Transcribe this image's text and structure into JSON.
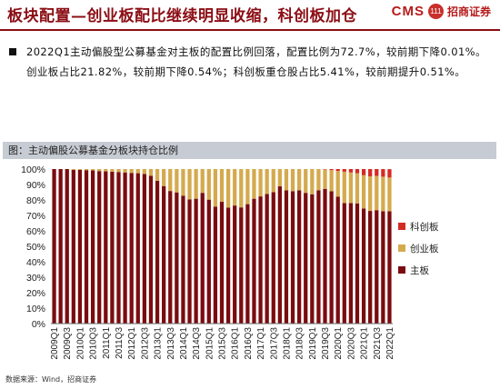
{
  "header": {
    "title": "板块配置—创业板配比继续明显收缩，科创板加仓",
    "logo": {
      "brand": "CMS",
      "badge_text": "111",
      "name": "招商证券"
    }
  },
  "summary": "2022Q1主动偏股型公募基金对主板的配置比例回落，配置比例为72.7%，较前期下降0.01%。创业板占比21.82%，较前期下降0.54%；科创板重仓股占比5.41%，较前期提升0.51%。",
  "chart_title": "图：主动偏股公募基金分板块持仓比例",
  "source": "数据来源：Wind，招商证券",
  "colors": {
    "main_board": "#7a0b0f",
    "chinext": "#d4aa4e",
    "star": "#d42a24",
    "accent": "#8b0d14"
  },
  "chart_data": {
    "type": "bar",
    "stacked": true,
    "title": "图：主动偏股公募基金分板块持仓比例",
    "xlabel": "",
    "ylabel": "",
    "ylim": [
      0,
      100
    ],
    "y_ticks": [
      "0%",
      "10%",
      "20%",
      "30%",
      "40%",
      "50%",
      "60%",
      "70%",
      "80%",
      "90%",
      "100%"
    ],
    "categories": [
      "2009Q1",
      "2009Q2",
      "2009Q3",
      "2009Q4",
      "2010Q1",
      "2010Q2",
      "2010Q3",
      "2010Q4",
      "2011Q1",
      "2011Q2",
      "2011Q3",
      "2011Q4",
      "2012Q1",
      "2012Q2",
      "2012Q3",
      "2012Q4",
      "2013Q1",
      "2013Q2",
      "2013Q3",
      "2013Q4",
      "2014Q1",
      "2014Q2",
      "2014Q3",
      "2014Q4",
      "2015Q1",
      "2015Q2",
      "2015Q3",
      "2015Q4",
      "2016Q1",
      "2016Q2",
      "2016Q3",
      "2016Q4",
      "2017Q1",
      "2017Q2",
      "2017Q3",
      "2017Q4",
      "2018Q1",
      "2018Q2",
      "2018Q3",
      "2018Q4",
      "2019Q1",
      "2019Q2",
      "2019Q3",
      "2019Q4",
      "2020Q1",
      "2020Q2",
      "2020Q3",
      "2020Q4",
      "2021Q1",
      "2021Q2",
      "2021Q3",
      "2021Q4",
      "2022Q1"
    ],
    "x_tick_labels": [
      "2009Q1",
      "2009Q3",
      "2010Q1",
      "2010Q3",
      "2011Q1",
      "2011Q3",
      "2012Q1",
      "2012Q3",
      "2013Q1",
      "2013Q3",
      "2014Q1",
      "2014Q3",
      "2015Q1",
      "2015Q3",
      "2016Q1",
      "2016Q3",
      "2017Q1",
      "2017Q3",
      "2018Q1",
      "2018Q3",
      "2019Q1",
      "2019Q3",
      "2020Q1",
      "2020Q3",
      "2021Q1",
      "2021Q3",
      "2022Q1"
    ],
    "legend": {
      "position": "right",
      "order": [
        "科创板",
        "创业板",
        "主板"
      ]
    },
    "grid": false,
    "series": [
      {
        "name": "主板",
        "values": [
          100,
          100,
          100,
          99.5,
          99.5,
          99.3,
          99.1,
          98.7,
          98.5,
          98.3,
          98.1,
          97.8,
          97.5,
          97.3,
          96.8,
          95.6,
          92.4,
          89,
          85.8,
          84.9,
          82.8,
          80.4,
          80.8,
          84.6,
          80.2,
          75.7,
          78.8,
          75.1,
          76.4,
          75.2,
          77.3,
          80.8,
          82.3,
          83.9,
          85,
          88.8,
          86.2,
          85.7,
          86.2,
          84.6,
          83.7,
          86.2,
          87.2,
          85.6,
          82.2,
          78,
          78,
          77.8,
          74.5,
          72.9,
          73.4,
          72.7,
          72.7
        ]
      },
      {
        "name": "创业板",
        "values": [
          0,
          0,
          0,
          0.5,
          0.5,
          0.7,
          0.9,
          1.3,
          1.5,
          1.7,
          1.9,
          2.2,
          2.5,
          2.7,
          3.2,
          4.4,
          7.6,
          11,
          14.2,
          15.1,
          17.2,
          19.6,
          19.2,
          15.4,
          19.8,
          24.3,
          21.2,
          24.9,
          23.6,
          24.8,
          22.7,
          19.2,
          17.7,
          16.1,
          15,
          11.2,
          13.8,
          14.3,
          13.8,
          15.4,
          16.3,
          13.8,
          12.6,
          13.7,
          16.6,
          20.3,
          19.8,
          19.5,
          21.5,
          22.4,
          22.2,
          22.36,
          21.82
        ]
      },
      {
        "name": "科创板",
        "values": [
          0,
          0,
          0,
          0,
          0,
          0,
          0,
          0,
          0,
          0,
          0,
          0,
          0,
          0,
          0,
          0,
          0,
          0,
          0,
          0,
          0,
          0,
          0,
          0,
          0,
          0,
          0,
          0,
          0,
          0,
          0,
          0,
          0,
          0,
          0,
          0,
          0,
          0,
          0,
          0,
          0,
          0,
          0.2,
          0.7,
          1.2,
          1.7,
          2.2,
          2.7,
          4,
          4.7,
          4.4,
          4.9,
          5.41
        ]
      }
    ]
  }
}
